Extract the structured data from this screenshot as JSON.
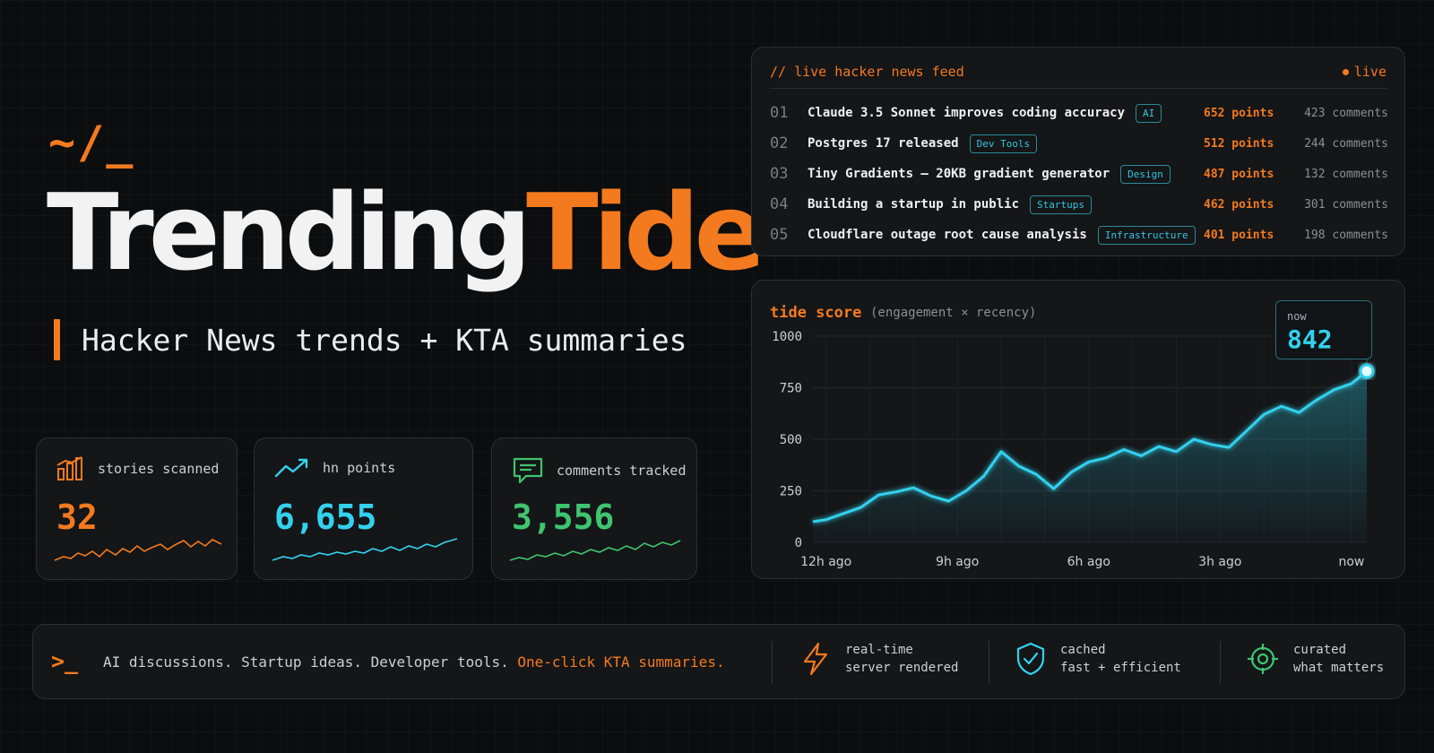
{
  "hero": {
    "prompt": "~/_",
    "title_part1": "Trending",
    "title_part2": "Tide",
    "tagline": "Hacker News trends + KTA summaries"
  },
  "stats": [
    {
      "label": "stories scanned",
      "value": "32",
      "color": "#f47a1f",
      "icon": "bar-chart-icon"
    },
    {
      "label": "hn points",
      "value": "6,655",
      "color": "#33d1ee",
      "icon": "trending-up-icon"
    },
    {
      "label": "comments tracked",
      "value": "3,556",
      "color": "#3fc46f",
      "icon": "comment-icon"
    }
  ],
  "feed": {
    "title": "// live hacker news feed",
    "live_label": "live",
    "items": [
      {
        "rank": "01",
        "title": "Claude 3.5 Sonnet improves coding accuracy",
        "tag": "AI",
        "points": "652 points",
        "comments": "423 comments"
      },
      {
        "rank": "02",
        "title": "Postgres 17 released",
        "tag": "Dev Tools",
        "points": "512 points",
        "comments": "244 comments"
      },
      {
        "rank": "03",
        "title": "Tiny Gradients – 20KB gradient generator",
        "tag": "Design",
        "points": "487 points",
        "comments": "132 comments"
      },
      {
        "rank": "04",
        "title": "Building a startup in public",
        "tag": "Startups",
        "points": "462 points",
        "comments": "301 comments"
      },
      {
        "rank": "05",
        "title": "Cloudflare outage root cause analysis",
        "tag": "Infrastructure",
        "points": "401 points",
        "comments": "198 comments"
      }
    ]
  },
  "chart": {
    "title": "tide score",
    "subtitle": "(engagement × recency)",
    "now_label": "now",
    "now_value": "842"
  },
  "chart_data": {
    "type": "area",
    "ylim": [
      0,
      1000
    ],
    "yticks": [
      "0",
      "250",
      "500",
      "750",
      "1000"
    ],
    "xticks": [
      "12h ago",
      "9h ago",
      "6h ago",
      "3h ago",
      "now"
    ],
    "xtick_hours": [
      -12,
      -9,
      -6,
      -3,
      0
    ],
    "xlim": [
      -12.3,
      0.35
    ],
    "grid": true,
    "color": "#33d1ee",
    "series": [
      {
        "x": [
          -12.3,
          -12,
          -11.6,
          -11.2,
          -10.8,
          -10.4,
          -10.0,
          -9.6,
          -9.2,
          -8.8,
          -8.4,
          -8.0,
          -7.6,
          -7.2,
          -6.8,
          -6.4,
          -6.0,
          -5.6,
          -5.2,
          -4.8,
          -4.4,
          -4.0,
          -3.6,
          -3.2,
          -2.8,
          -2.4,
          -2.0,
          -1.6,
          -1.2,
          -0.8,
          -0.4,
          0.0,
          0.35
        ],
        "y": [
          100,
          110,
          140,
          170,
          230,
          245,
          265,
          225,
          200,
          250,
          320,
          440,
          370,
          330,
          260,
          340,
          390,
          410,
          450,
          420,
          465,
          440,
          500,
          475,
          460,
          540,
          620,
          660,
          630,
          690,
          740,
          770,
          830
        ]
      }
    ]
  },
  "bottom": {
    "prompt": ">_",
    "text": "AI discussions. Startup ideas. Developer tools.",
    "highlight": "One-click KTA summaries.",
    "features": [
      {
        "line1": "real-time",
        "line2": "server rendered",
        "icon": "lightning-icon",
        "color": "#f47a1f"
      },
      {
        "line1": "cached",
        "line2": "fast + efficient",
        "icon": "shield-check-icon",
        "color": "#33d1ee"
      },
      {
        "line1": "curated",
        "line2": "what matters",
        "icon": "target-icon",
        "color": "#3fc46f"
      }
    ]
  }
}
